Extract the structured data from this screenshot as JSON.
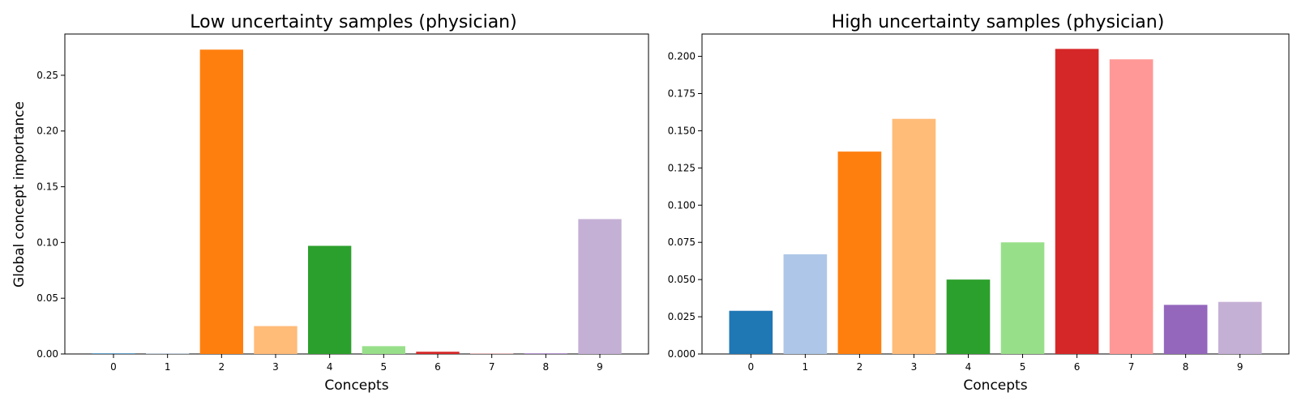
{
  "chart_data": [
    {
      "type": "bar",
      "title": "Low uncertainty samples (physician)",
      "xlabel": "Concepts",
      "ylabel": "Global concept importance",
      "categories": [
        "0",
        "1",
        "2",
        "3",
        "4",
        "5",
        "6",
        "7",
        "8",
        "9"
      ],
      "values": [
        0.0005,
        0.0003,
        0.273,
        0.025,
        0.097,
        0.007,
        0.002,
        0.0003,
        0.0005,
        0.121
      ],
      "colors": [
        "#1f77b4",
        "#aec7e8",
        "#ff7f0e",
        "#ffbb78",
        "#2ca02c",
        "#98df8a",
        "#d62728",
        "#ff9896",
        "#9467bd",
        "#c5b0d5"
      ],
      "ylim": [
        0,
        0.287
      ],
      "yticks": [
        0.0,
        0.05,
        0.1,
        0.15,
        0.2,
        0.25
      ],
      "ytick_labels": [
        "0.00",
        "0.05",
        "0.10",
        "0.15",
        "0.20",
        "0.25"
      ],
      "grid": false,
      "legend": "none"
    },
    {
      "type": "bar",
      "title": "High uncertainty samples (physician)",
      "xlabel": "Concepts",
      "ylabel": "",
      "categories": [
        "0",
        "1",
        "2",
        "3",
        "4",
        "5",
        "6",
        "7",
        "8",
        "9"
      ],
      "values": [
        0.029,
        0.067,
        0.136,
        0.158,
        0.05,
        0.075,
        0.205,
        0.198,
        0.033,
        0.035
      ],
      "colors": [
        "#1f77b4",
        "#aec7e8",
        "#ff7f0e",
        "#ffbb78",
        "#2ca02c",
        "#98df8a",
        "#d62728",
        "#ff9896",
        "#9467bd",
        "#c5b0d5"
      ],
      "ylim": [
        0,
        0.215
      ],
      "yticks": [
        0.0,
        0.025,
        0.05,
        0.075,
        0.1,
        0.125,
        0.15,
        0.175,
        0.2
      ],
      "ytick_labels": [
        "0.000",
        "0.025",
        "0.050",
        "0.075",
        "0.100",
        "0.125",
        "0.150",
        "0.175",
        "0.200"
      ],
      "grid": false,
      "legend": "none"
    }
  ]
}
